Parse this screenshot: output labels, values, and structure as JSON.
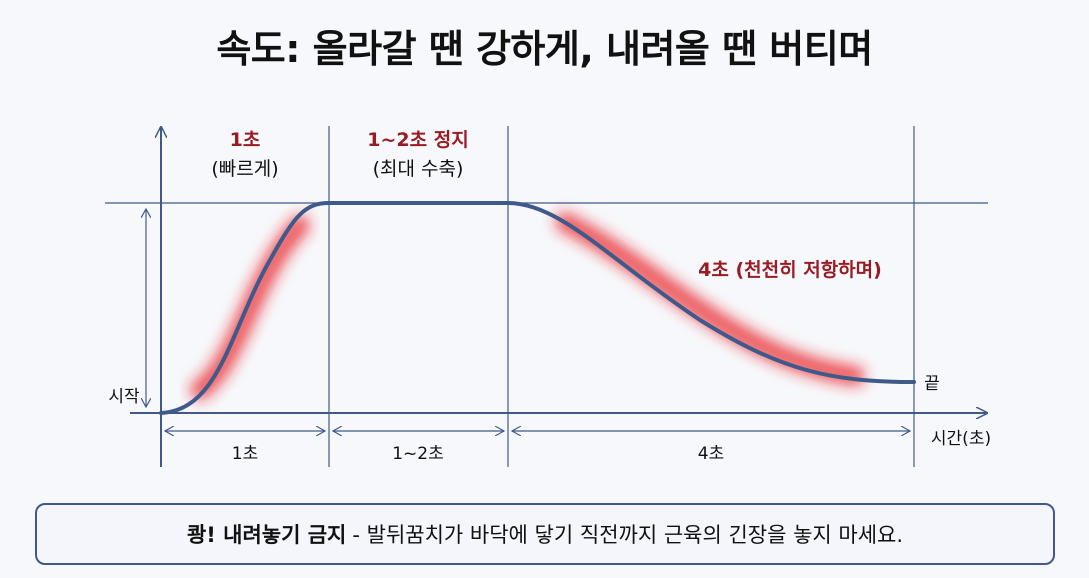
{
  "title": "속도: 올라갈 땐 강하게, 내려올 땐 버티며",
  "labels": {
    "phase1_title": "1초",
    "phase1_sub": "(빠르게)",
    "phase2_title": "1~2초 정지",
    "phase2_sub": "(최대 수축)",
    "phase3_title": "4초 (천천히 저항하며)",
    "start": "시작",
    "end": "끝",
    "x_axis": "시간(초)",
    "dim1": "1초",
    "dim2": "1~2초",
    "dim3": "4초"
  },
  "note": {
    "strong": "쾅! 내려놓기 금지",
    "text": "- 발뒤꿈치가 바닥에 닿기 직전까지 근육의 긴장을 놓지 마세요."
  },
  "colors": {
    "curve": "#3f5a8a",
    "highlight": "#e8202a",
    "accent_text": "#9b1b22",
    "axis": "#3f5a8a"
  }
}
